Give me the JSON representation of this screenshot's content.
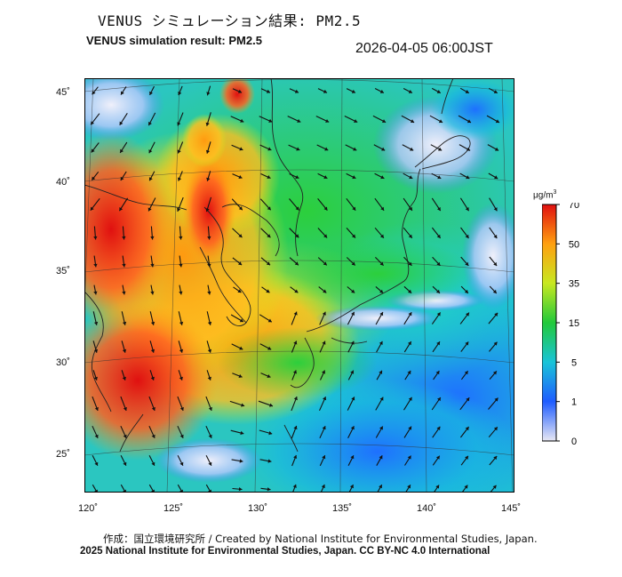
{
  "header": {
    "title_jp": "VENUS シミュレーション結果: PM2.5",
    "title_en": "VENUS simulation result: PM2.5",
    "timestamp": "2026-04-05 06:00JST"
  },
  "map": {
    "longitude_ticks": [
      "120˚",
      "125˚",
      "130˚",
      "135˚",
      "140˚",
      "145˚"
    ],
    "latitude_ticks": [
      "45˚",
      "40˚",
      "35˚",
      "30˚",
      "25˚"
    ]
  },
  "colorbar": {
    "unit": "μg/m",
    "unit_sup": "3",
    "ticks": [
      "70",
      "50",
      "35",
      "15",
      "5",
      "1",
      "0"
    ],
    "colors": [
      "#e8e8f4",
      "#1e5cff",
      "#19c4d8",
      "#22c93b",
      "#c8e820",
      "#ffa010",
      "#e01010"
    ]
  },
  "footer": {
    "credit_jp_en": "作成：国立環境研究所 / Created by National Institute for Environmental Studies, Japan.",
    "license": "2025 National Institute for Environmental Studies, Japan. CC BY-NC 4.0 International"
  }
}
